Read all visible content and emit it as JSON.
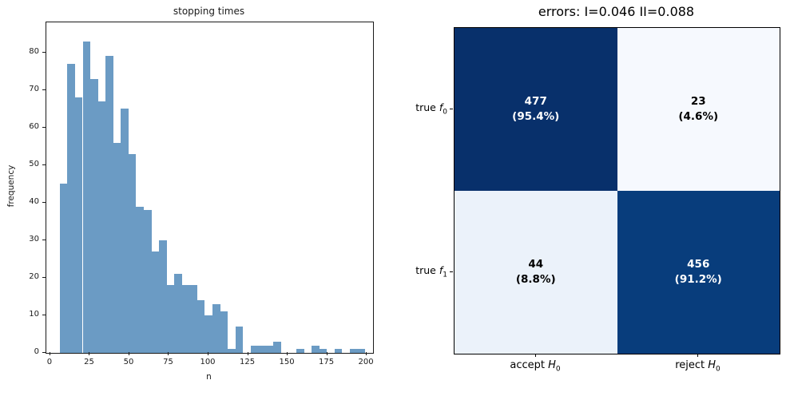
{
  "figure": {
    "background": "#ffffff"
  },
  "left_plot": {
    "title": "stopping times",
    "xlabel": "n",
    "ylabel": "frequency"
  },
  "right_plot": {
    "title": "errors: I=0.046 II=0.088",
    "row_labels": [
      {
        "prefix": "true ",
        "symbol": "f",
        "subscript": "0"
      },
      {
        "prefix": "true ",
        "symbol": "f",
        "subscript": "1"
      }
    ],
    "col_labels": [
      {
        "prefix": "accept ",
        "symbol": "H",
        "subscript": "0"
      },
      {
        "prefix": "reject ",
        "symbol": "H",
        "subscript": "0"
      }
    ]
  },
  "chart_data": [
    {
      "type": "bar",
      "title": "stopping times",
      "xlabel": "n",
      "ylabel": "frequency",
      "bar_color": "#6b9bc4",
      "bin_start": 6,
      "bin_width": 4.825,
      "values": [
        45,
        77,
        68,
        83,
        73,
        67,
        79,
        56,
        65,
        53,
        39,
        38,
        27,
        30,
        18,
        21,
        18,
        18,
        14,
        10,
        13,
        11,
        1,
        7,
        0,
        2,
        2,
        2,
        3,
        0,
        0,
        1,
        0,
        2,
        1,
        0,
        1,
        0,
        1,
        1
      ],
      "x_ticks": [
        0,
        25,
        50,
        75,
        100,
        125,
        150,
        175,
        200
      ],
      "y_ticks": [
        0,
        10,
        20,
        30,
        40,
        50,
        60,
        70,
        80
      ],
      "xlim": [
        -2.5,
        204
      ],
      "ylim": [
        0,
        88
      ],
      "grid": false,
      "legend": null
    },
    {
      "type": "heatmap",
      "title": "errors: I=0.046 II=0.088",
      "type_I_error": 0.046,
      "type_II_error": 0.088,
      "rows": [
        "true f0",
        "true f1"
      ],
      "cols": [
        "accept H0",
        "reject H0"
      ],
      "cells": [
        [
          {
            "count": "477",
            "percent": "(95.4%)",
            "bg": "#08306b",
            "fg": "#ffffff"
          },
          {
            "count": "23",
            "percent": "(4.6%)",
            "bg": "#f6f9fe",
            "fg": "#000000"
          }
        ],
        [
          {
            "count": "44",
            "percent": "(8.8%)",
            "bg": "#ebf2fa",
            "fg": "#000000"
          },
          {
            "count": "456",
            "percent": "(91.2%)",
            "bg": "#083d7c",
            "fg": "#ffffff"
          }
        ]
      ]
    }
  ]
}
